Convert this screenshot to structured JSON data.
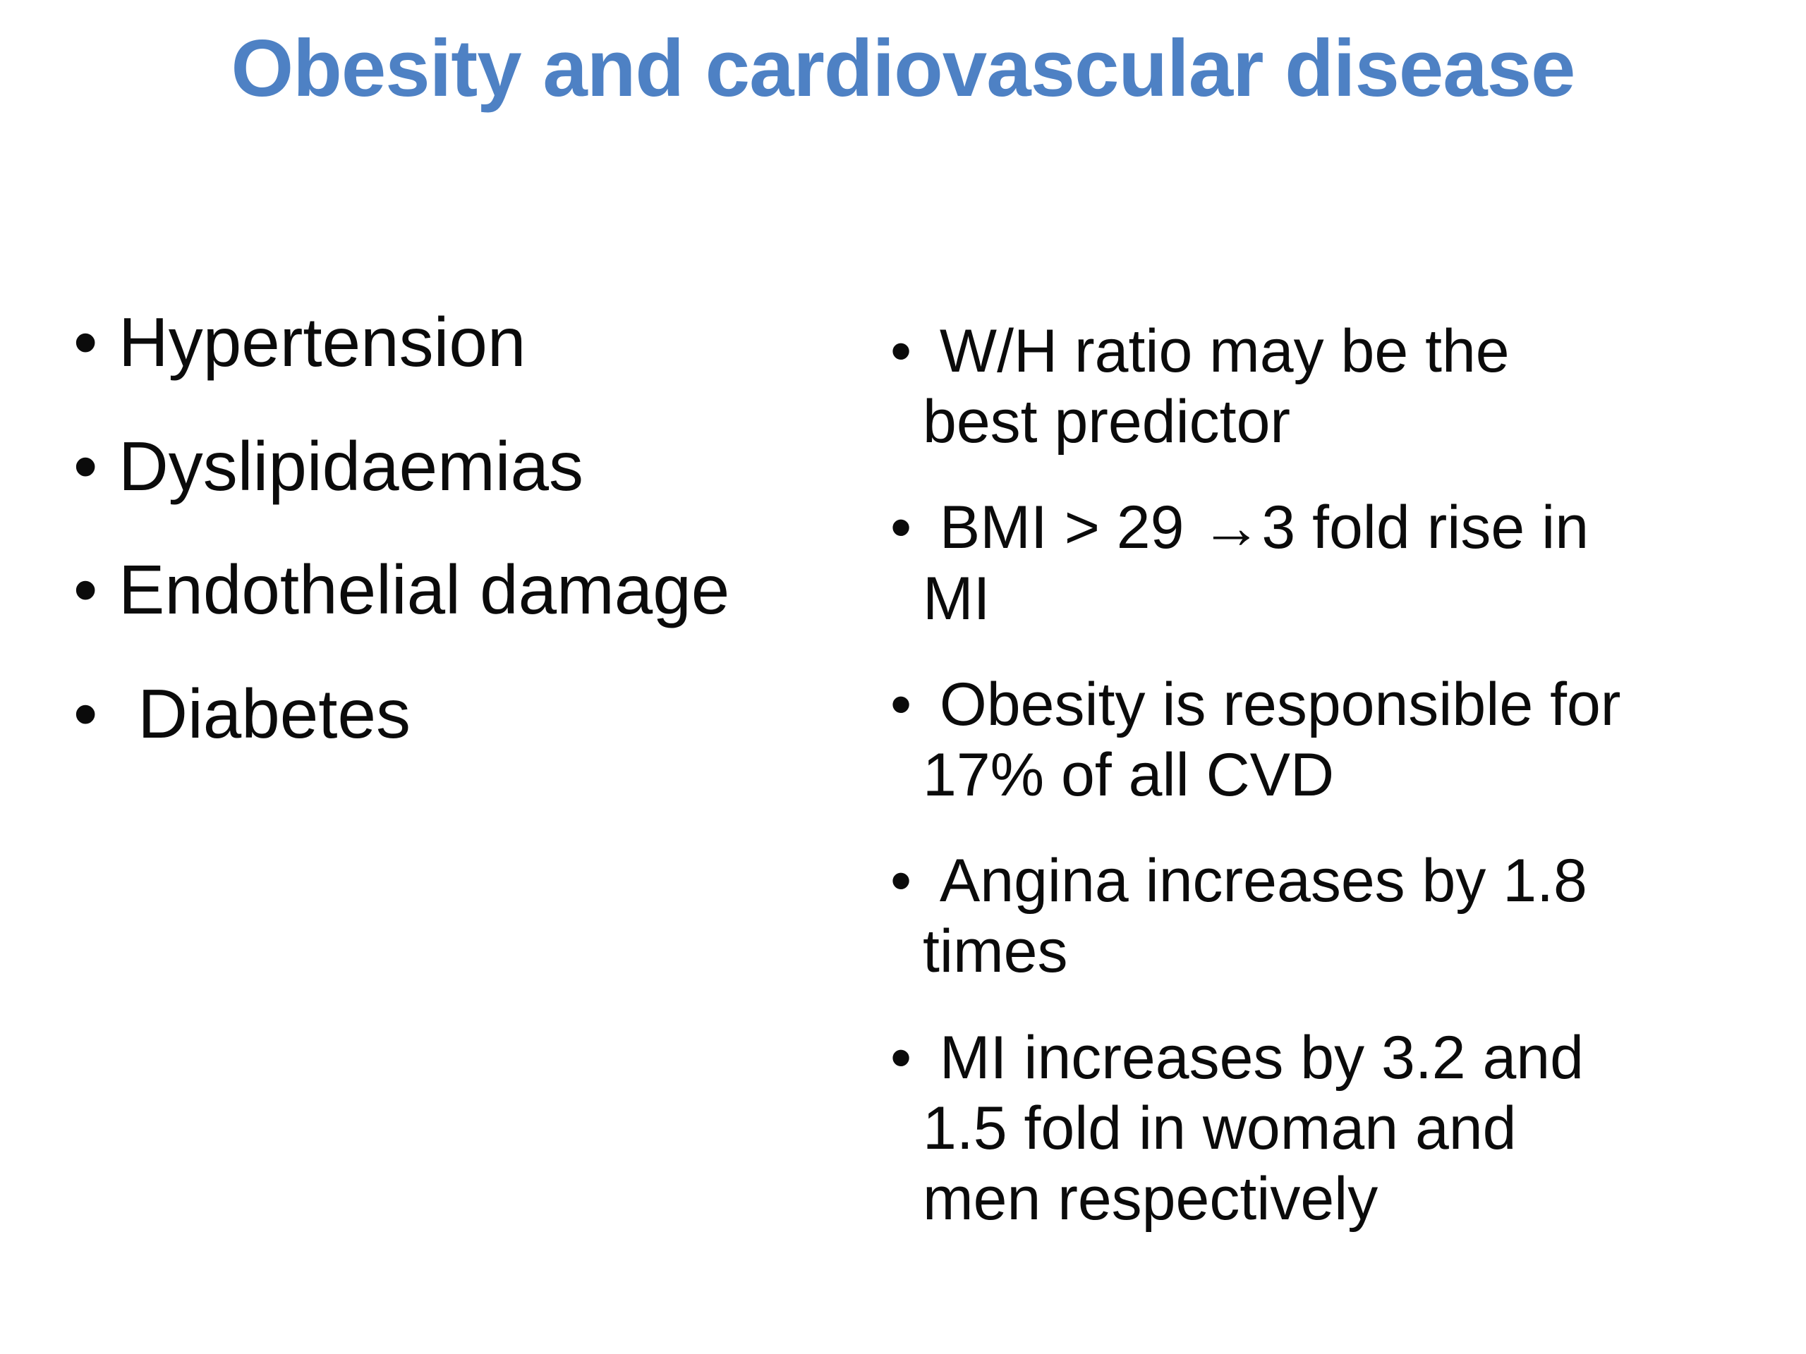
{
  "slide": {
    "title": "Obesity and cardiovascular disease",
    "title_color": "#4e81c4",
    "bullet_char": "•",
    "left_column": {
      "items": [
        "Hypertension",
        "Dyslipidaemias",
        "Endothelial damage",
        " Diabetes"
      ]
    },
    "right_column": {
      "items": [
        " W/H ratio may be the\nbest predictor",
        " BMI > 29 →3 fold rise in\nMI",
        " Obesity is responsible for\n17% of all CVD",
        " Angina increases by 1.8\ntimes",
        " MI increases by 3.2 and\n1.5 fold in woman and\nmen respectively"
      ]
    }
  }
}
